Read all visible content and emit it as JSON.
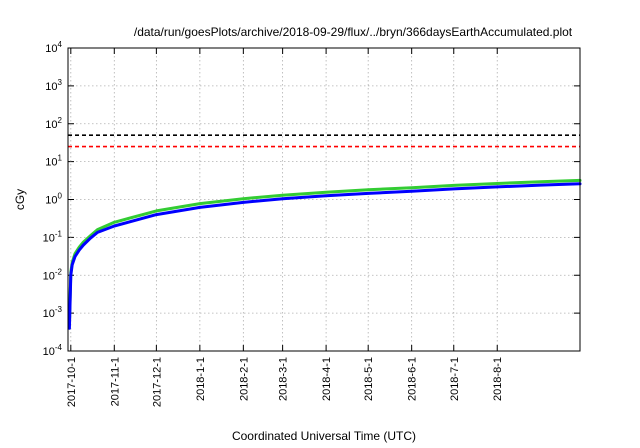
{
  "chart_data": {
    "type": "line",
    "title": "/data/run/goesPlots/archive/2018-09-29/flux/../bryn/366daysEarthAccumulated.plot",
    "xlabel": "Coordinated Universal Time (UTC)",
    "ylabel": "cGy",
    "y_scale": "log",
    "ylim": [
      0.0001,
      10000
    ],
    "y_ticks": [
      {
        "value": 0.0001,
        "base": "10",
        "exp": "-4"
      },
      {
        "value": 0.001,
        "base": "10",
        "exp": "-3"
      },
      {
        "value": 0.01,
        "base": "10",
        "exp": "-2"
      },
      {
        "value": 0.1,
        "base": "10",
        "exp": "-1"
      },
      {
        "value": 1,
        "base": "10",
        "exp": "0"
      },
      {
        "value": 10,
        "base": "10",
        "exp": "1"
      },
      {
        "value": 100,
        "base": "10",
        "exp": "2"
      },
      {
        "value": 1000,
        "base": "10",
        "exp": "3"
      },
      {
        "value": 10000,
        "base": "10",
        "exp": "4"
      }
    ],
    "xlim": [
      "2017-09-29",
      "2018-09-29"
    ],
    "x_ticks": [
      "2017-10-1",
      "2017-11-1",
      "2017-12-1",
      "2018-1-1",
      "2018-2-1",
      "2018-3-1",
      "2018-4-1",
      "2018-5-1",
      "2018-6-1",
      "2018-7-1",
      "2018-8-1"
    ],
    "grid": true,
    "reference_lines": [
      {
        "value": 50,
        "color": "#000000",
        "style": "dashed"
      },
      {
        "value": 25,
        "color": "#ff0000",
        "style": "dashed"
      }
    ],
    "series": [
      {
        "color": "#33cc33",
        "x": [
          "2017-09-30",
          "2017-10-01",
          "2017-10-02",
          "2017-10-04",
          "2017-10-07",
          "2017-10-10",
          "2017-10-15",
          "2017-10-20",
          "2017-11-01",
          "2017-12-01",
          "2018-01-01",
          "2018-02-01",
          "2018-03-01",
          "2018-04-01",
          "2018-05-01",
          "2018-06-01",
          "2018-07-01",
          "2018-08-01",
          "2018-09-01",
          "2018-09-29"
        ],
        "y": [
          0.0005,
          0.012,
          0.022,
          0.037,
          0.055,
          0.075,
          0.11,
          0.16,
          0.25,
          0.5,
          0.78,
          1.05,
          1.3,
          1.55,
          1.8,
          2.05,
          2.35,
          2.65,
          2.95,
          3.2
        ]
      },
      {
        "color": "#0000ff",
        "x": [
          "2017-09-30",
          "2017-10-01",
          "2017-10-02",
          "2017-10-04",
          "2017-10-07",
          "2017-10-10",
          "2017-10-15",
          "2017-10-20",
          "2017-11-01",
          "2017-12-01",
          "2018-01-01",
          "2018-02-01",
          "2018-03-01",
          "2018-04-01",
          "2018-05-01",
          "2018-06-01",
          "2018-07-01",
          "2018-08-01",
          "2018-09-01",
          "2018-09-29"
        ],
        "y": [
          0.0004,
          0.01,
          0.019,
          0.031,
          0.046,
          0.063,
          0.095,
          0.135,
          0.2,
          0.4,
          0.62,
          0.84,
          1.05,
          1.25,
          1.45,
          1.65,
          1.9,
          2.15,
          2.4,
          2.6
        ]
      }
    ]
  }
}
